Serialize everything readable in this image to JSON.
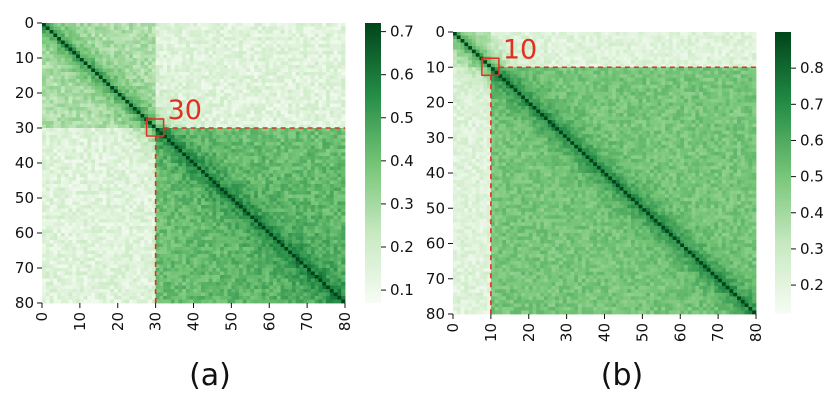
{
  "colors": {
    "low": "#f7fcf5",
    "mid": "#74c476",
    "high": "#00441b",
    "annotation": "#e03020"
  },
  "chart_data": [
    {
      "type": "heatmap",
      "panel_label": "(a)",
      "n": 80,
      "x_ticks": [
        0,
        10,
        20,
        30,
        40,
        50,
        60,
        70,
        80
      ],
      "y_ticks": [
        0,
        10,
        20,
        30,
        40,
        50,
        60,
        70,
        80
      ],
      "colorbar": {
        "min": 0.07,
        "max": 0.72,
        "ticks": [
          0.1,
          0.2,
          0.3,
          0.4,
          0.5,
          0.6,
          0.7
        ]
      },
      "annotation": {
        "index": 30,
        "label": "30"
      },
      "block_values": {
        "upper_left": 0.28,
        "lower_right": 0.38,
        "off_diagonal": 0.15,
        "diagonal": 0.72
      }
    },
    {
      "type": "heatmap",
      "panel_label": "(b)",
      "n": 80,
      "x_ticks": [
        0,
        10,
        20,
        30,
        40,
        50,
        60,
        70,
        80
      ],
      "y_ticks": [
        0,
        10,
        20,
        30,
        40,
        50,
        60,
        70,
        80
      ],
      "colorbar": {
        "min": 0.12,
        "max": 0.9,
        "ticks": [
          0.2,
          0.3,
          0.4,
          0.5,
          0.6,
          0.7,
          0.8
        ]
      },
      "annotation": {
        "index": 10,
        "label": "10"
      },
      "block_values": {
        "upper_left": 0.3,
        "lower_right": 0.5,
        "off_diagonal": 0.22,
        "diagonal": 0.9
      }
    }
  ]
}
